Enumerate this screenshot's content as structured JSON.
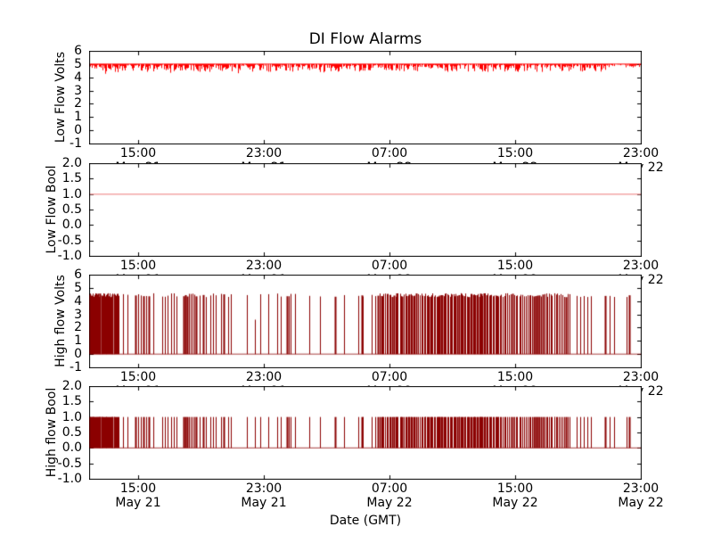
{
  "chart_data": {
    "type": "line",
    "title": "DI Flow Alarms",
    "xlabel": "Date (GMT)",
    "background": "#ffffff",
    "frame_color": "#000000",
    "xlim_hours": [
      11.89,
      47.02
    ],
    "x_ticks": [
      {
        "hours": 15,
        "time": "15:00",
        "date": "May 21"
      },
      {
        "hours": 23,
        "time": "23:00",
        "date": "May 21"
      },
      {
        "hours": 31,
        "time": "07:00",
        "date": "May 22"
      },
      {
        "hours": 39,
        "time": "15:00",
        "date": "May 22"
      },
      {
        "hours": 47,
        "time": "23:00",
        "date": "May 22"
      }
    ],
    "subplots": [
      {
        "name": "low-flow-volts",
        "ylabel": "Low Flow Volts",
        "ylim": [
          -1,
          6
        ],
        "ytick_values": [
          6,
          5,
          4,
          3,
          2,
          1,
          0,
          -1
        ],
        "ytick_labels": [
          "6",
          "5",
          "4",
          "3",
          "2",
          "1",
          "0",
          "-1"
        ],
        "series": {
          "kind": "noisy_baseline",
          "baseline": 5.0,
          "dip_depth_max": 0.85,
          "color": "#ff0000",
          "seed": 42
        }
      },
      {
        "name": "low-flow-bool",
        "ylabel": "Low Flow Bool",
        "ylim": [
          -1,
          2
        ],
        "ytick_values": [
          2,
          1.5,
          1,
          0.5,
          0,
          -0.5,
          -1
        ],
        "ytick_labels": [
          "2.0",
          "1.5",
          "1.0",
          "0.5",
          "0.0",
          "-0.5",
          "-1.0"
        ],
        "series": {
          "kind": "constant",
          "value": 1.0,
          "color": "#f4a5a5"
        }
      },
      {
        "name": "high-flow-volts",
        "ylabel": "High flow Volts",
        "ylim": [
          -1,
          6
        ],
        "ytick_values": [
          6,
          5,
          4,
          3,
          2,
          1,
          0,
          -1
        ],
        "ytick_labels": [
          "6",
          "5",
          "4",
          "3",
          "2",
          "1",
          "0",
          "-1"
        ],
        "series": {
          "kind": "spikes",
          "baseline": 0.0,
          "spike_value_min": 4.3,
          "spike_value_max": 4.6,
          "color": "#8b0000",
          "seed": 7,
          "spike_hours": [
            14.04,
            14.32,
            14.83,
            15.0,
            15.17,
            15.34,
            15.51,
            15.68,
            15.96,
            16.53,
            16.7,
            16.87,
            17.1,
            17.27,
            17.43,
            17.89,
            18.0,
            18.11,
            18.23,
            18.34,
            18.45,
            18.57,
            18.68,
            18.91,
            19.13,
            19.3,
            19.59,
            19.76,
            19.93,
            20.27,
            20.44,
            20.72,
            20.89,
            21.91,
            22.81,
            23.32,
            23.89,
            24.12,
            24.51,
            24.63,
            24.74,
            25.02,
            25.93,
            26.61,
            27.57,
            28.14,
            29.04,
            29.27,
            29.33,
            29.89,
            30.12,
            42.92,
            43.14,
            43.37,
            43.6,
            43.82,
            44.73,
            45.01,
            45.29,
            46.14,
            46.26
          ],
          "spike_clusters": [
            {
              "from": 11.9,
              "to": 13.75,
              "count": 38
            },
            {
              "from": 30.29,
              "to": 33.29,
              "count": 34
            },
            {
              "from": 33.29,
              "to": 38.05,
              "count": 62
            },
            {
              "from": 38.1,
              "to": 42.46,
              "count": 42
            }
          ],
          "short_spikes": [
            {
              "hour": 22.42,
              "value": 2.6
            },
            {
              "hour": 41.5,
              "value": 2.0
            }
          ]
        }
      },
      {
        "name": "high-flow-bool",
        "ylabel": "High flow Bool",
        "ylim": [
          -1,
          2
        ],
        "ytick_values": [
          2,
          1.5,
          1,
          0.5,
          0,
          -0.5,
          -1
        ],
        "ytick_labels": [
          "2.0",
          "1.5",
          "1.0",
          "0.5",
          "0.0",
          "-0.5",
          "-1.0"
        ],
        "series": {
          "kind": "spikes",
          "baseline": 0.0,
          "spike_value_min": 1.0,
          "spike_value_max": 1.0,
          "color": "#8b0000",
          "seed": 7,
          "same_spikes_as": 2
        }
      }
    ]
  }
}
